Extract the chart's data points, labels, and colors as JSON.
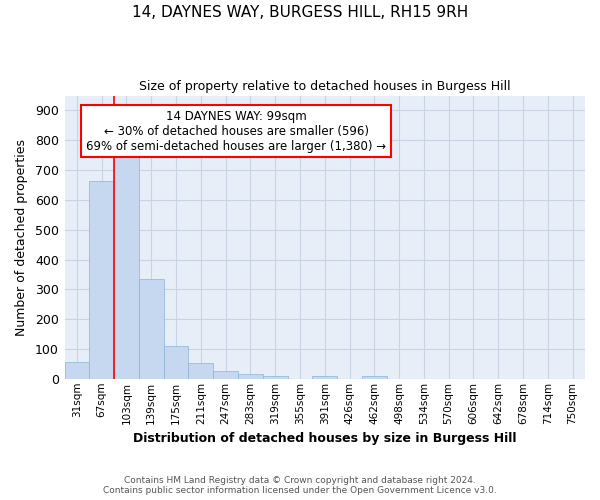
{
  "title": "14, DAYNES WAY, BURGESS HILL, RH15 9RH",
  "subtitle": "Size of property relative to detached houses in Burgess Hill",
  "xlabel": "Distribution of detached houses by size in Burgess Hill",
  "ylabel": "Number of detached properties",
  "footer_line1": "Contains HM Land Registry data © Crown copyright and database right 2024.",
  "footer_line2": "Contains public sector information licensed under the Open Government Licence v3.0.",
  "bar_labels": [
    "31sqm",
    "67sqm",
    "103sqm",
    "139sqm",
    "175sqm",
    "211sqm",
    "247sqm",
    "283sqm",
    "319sqm",
    "355sqm",
    "391sqm",
    "426sqm",
    "462sqm",
    "498sqm",
    "534sqm",
    "570sqm",
    "606sqm",
    "642sqm",
    "678sqm",
    "714sqm",
    "750sqm"
  ],
  "bar_values": [
    55,
    665,
    750,
    335,
    110,
    52,
    25,
    15,
    10,
    0,
    10,
    0,
    10,
    0,
    0,
    0,
    0,
    0,
    0,
    0,
    0
  ],
  "bar_color": "#c5d8f0",
  "bar_edge_color": "#8ab4d8",
  "grid_color": "#c8d4e4",
  "background_color": "#e8eef8",
  "annotation_text_line1": "14 DAYNES WAY: 99sqm",
  "annotation_text_line2": "← 30% of detached houses are smaller (596)",
  "annotation_text_line3": "69% of semi-detached houses are larger (1,380) →",
  "annotation_box_color": "white",
  "annotation_box_edge_color": "red",
  "vline_color": "red",
  "vline_x_index": 2,
  "ylim": [
    0,
    950
  ],
  "yticks": [
    0,
    100,
    200,
    300,
    400,
    500,
    600,
    700,
    800,
    900
  ]
}
